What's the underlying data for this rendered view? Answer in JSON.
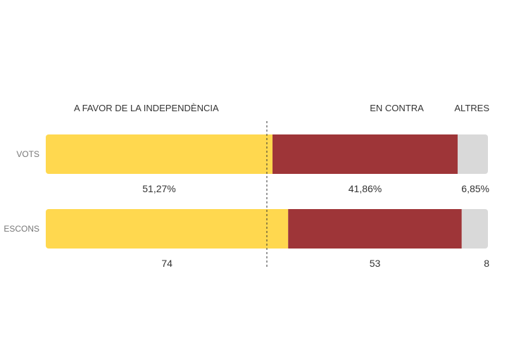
{
  "chart_data": {
    "type": "bar",
    "orientation": "horizontal",
    "stacked": true,
    "normalized": true,
    "categories": [
      "A FAVOR DE LA INDEPENDÈNCIA",
      "EN CONTRA",
      "ALTRES"
    ],
    "colors": [
      "#FFD84F",
      "#9E3538",
      "#D9D9D9"
    ],
    "threshold_fraction": 0.5,
    "rows": [
      {
        "label": "VOTS",
        "values": [
          51.27,
          41.86,
          6.85
        ],
        "value_labels": [
          "51,27%",
          "41,86%",
          "6,85%"
        ]
      },
      {
        "label": "ESCONS",
        "values": [
          74,
          53,
          8
        ],
        "value_labels": [
          "74",
          "53",
          "8"
        ]
      }
    ],
    "title": "",
    "xlabel": "",
    "ylabel": "",
    "grid": false
  }
}
